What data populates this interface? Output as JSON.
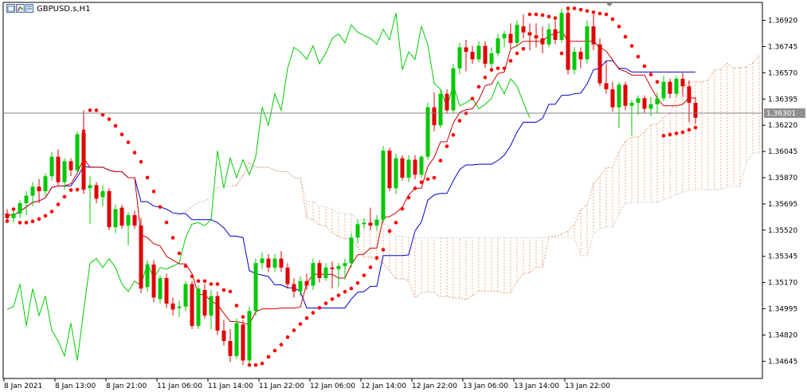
{
  "chart_window": {
    "symbol_title": "GBPUSD.s,H1",
    "icons": [
      "chart-window-icon"
    ],
    "current_price_label": "1.36301"
  },
  "chart_data": {
    "type": "candlestick",
    "symbol": "GBPUSD.s",
    "timeframe": "H1",
    "y_ticks": [
      "1.36920",
      "1.36745",
      "1.36570",
      "1.36395",
      "1.36220",
      "1.36045",
      "1.35870",
      "1.35695",
      "1.35520",
      "1.35345",
      "1.35170",
      "1.34995",
      "1.34820",
      "1.34645"
    ],
    "x_ticks": [
      "8 Jan 2021",
      "8 Jan 13:00",
      "8 Jan 21:00",
      "11 Jan 06:00",
      "11 Jan 14:00",
      "11 Jan 22:00",
      "12 Jan 06:00",
      "12 Jan 14:00",
      "12 Jan 22:00",
      "13 Jan 06:00",
      "13 Jan 14:00",
      "13 Jan 22:00"
    ],
    "ylim": [
      1.3453,
      1.3704
    ],
    "current_price": 1.36301,
    "candles": [
      [
        1.3563,
        1.3566,
        1.3558,
        1.356
      ],
      [
        1.356,
        1.3567,
        1.3557,
        1.3563
      ],
      [
        1.3563,
        1.3572,
        1.356,
        1.357
      ],
      [
        1.357,
        1.3578,
        1.3562,
        1.3575
      ],
      [
        1.3575,
        1.3584,
        1.3568,
        1.3581
      ],
      [
        1.3581,
        1.3586,
        1.357,
        1.3578
      ],
      [
        1.3578,
        1.359,
        1.3575,
        1.3588
      ],
      [
        1.3588,
        1.3604,
        1.3585,
        1.3601
      ],
      [
        1.3601,
        1.3606,
        1.3582,
        1.3584
      ],
      [
        1.3584,
        1.36,
        1.3579,
        1.3598
      ],
      [
        1.3598,
        1.36,
        1.3588,
        1.3592
      ],
      [
        1.3592,
        1.3618,
        1.359,
        1.3616
      ],
      [
        1.3617,
        1.3632,
        1.3576,
        1.3579
      ],
      [
        1.358,
        1.3588,
        1.3556,
        1.3582
      ],
      [
        1.3582,
        1.3584,
        1.357,
        1.3573
      ],
      [
        1.3574,
        1.3582,
        1.3568,
        1.3578
      ],
      [
        1.3578,
        1.358,
        1.3552,
        1.3554
      ],
      [
        1.3554,
        1.3569,
        1.355,
        1.3566
      ],
      [
        1.3567,
        1.3569,
        1.3553,
        1.3555
      ],
      [
        1.3555,
        1.3564,
        1.3542,
        1.3562
      ],
      [
        1.3562,
        1.3565,
        1.3553,
        1.3555
      ],
      [
        1.3555,
        1.356,
        1.351,
        1.3513
      ],
      [
        1.3514,
        1.3532,
        1.3511,
        1.3529
      ],
      [
        1.3529,
        1.3532,
        1.3504,
        1.3507
      ],
      [
        1.3506,
        1.3522,
        1.3503,
        1.352
      ],
      [
        1.352,
        1.3523,
        1.35,
        1.3503
      ],
      [
        1.3503,
        1.3507,
        1.3495,
        1.3499
      ],
      [
        1.35,
        1.3505,
        1.3494,
        1.3501
      ],
      [
        1.3501,
        1.3518,
        1.3498,
        1.3516
      ],
      [
        1.3516,
        1.3518,
        1.3486,
        1.3488
      ],
      [
        1.3488,
        1.3515,
        1.3486,
        1.3513
      ],
      [
        1.3512,
        1.3516,
        1.3493,
        1.3495
      ],
      [
        1.3495,
        1.3512,
        1.3486,
        1.3508
      ],
      [
        1.3508,
        1.3511,
        1.3482,
        1.3485
      ],
      [
        1.3485,
        1.3492,
        1.3475,
        1.3478
      ],
      [
        1.3478,
        1.3486,
        1.3464,
        1.3468
      ],
      [
        1.3468,
        1.3493,
        1.3466,
        1.349
      ],
      [
        1.3489,
        1.3492,
        1.3462,
        1.3465
      ],
      [
        1.3465,
        1.3501,
        1.3463,
        1.3498
      ],
      [
        1.3498,
        1.3533,
        1.3495,
        1.353
      ],
      [
        1.353,
        1.3537,
        1.3526,
        1.3533
      ],
      [
        1.3533,
        1.3536,
        1.3524,
        1.3527
      ],
      [
        1.3527,
        1.3536,
        1.3524,
        1.3533
      ],
      [
        1.3533,
        1.3538,
        1.3524,
        1.3527
      ],
      [
        1.3527,
        1.353,
        1.3513,
        1.3516
      ],
      [
        1.3516,
        1.352,
        1.3507,
        1.3511
      ],
      [
        1.3511,
        1.3521,
        1.3508,
        1.3518
      ],
      [
        1.3518,
        1.3523,
        1.3512,
        1.3515
      ],
      [
        1.3515,
        1.3533,
        1.3512,
        1.353
      ],
      [
        1.353,
        1.3532,
        1.3517,
        1.352
      ],
      [
        1.352,
        1.353,
        1.3518,
        1.3527
      ],
      [
        1.3527,
        1.3531,
        1.3513,
        1.3526
      ],
      [
        1.3526,
        1.353,
        1.3514,
        1.3528
      ],
      [
        1.3528,
        1.3533,
        1.3519,
        1.353
      ],
      [
        1.353,
        1.355,
        1.3527,
        1.3547
      ],
      [
        1.3547,
        1.3559,
        1.3543,
        1.3556
      ],
      [
        1.3556,
        1.356,
        1.3553,
        1.3557
      ],
      [
        1.3557,
        1.3567,
        1.3552,
        1.3555
      ],
      [
        1.3555,
        1.3562,
        1.3552,
        1.3559
      ],
      [
        1.3559,
        1.3608,
        1.3557,
        1.3605
      ],
      [
        1.3605,
        1.3607,
        1.3578,
        1.358
      ],
      [
        1.358,
        1.3603,
        1.3576,
        1.36
      ],
      [
        1.36,
        1.3602,
        1.3585,
        1.3587
      ],
      [
        1.3587,
        1.3602,
        1.3584,
        1.3599
      ],
      [
        1.3599,
        1.3602,
        1.3586,
        1.3589
      ],
      [
        1.3589,
        1.3602,
        1.3587,
        1.3601
      ],
      [
        1.3601,
        1.3637,
        1.3599,
        1.3634
      ],
      [
        1.3634,
        1.3644,
        1.3618,
        1.3622
      ],
      [
        1.3622,
        1.3646,
        1.362,
        1.3643
      ],
      [
        1.3643,
        1.3646,
        1.363,
        1.3632
      ],
      [
        1.3632,
        1.3663,
        1.363,
        1.366
      ],
      [
        1.366,
        1.3677,
        1.3656,
        1.3674
      ],
      [
        1.3674,
        1.3679,
        1.3658,
        1.3671
      ],
      [
        1.3671,
        1.3675,
        1.3663,
        1.3666
      ],
      [
        1.3666,
        1.3678,
        1.3664,
        1.3675
      ],
      [
        1.3675,
        1.3678,
        1.366,
        1.3663
      ],
      [
        1.3663,
        1.3674,
        1.366,
        1.367
      ],
      [
        1.367,
        1.3683,
        1.3668,
        1.368
      ],
      [
        1.368,
        1.3685,
        1.3674,
        1.3683
      ],
      [
        1.3683,
        1.369,
        1.3673,
        1.3677
      ],
      [
        1.3677,
        1.3692,
        1.3674,
        1.3689
      ],
      [
        1.3688,
        1.3696,
        1.368,
        1.3684
      ],
      [
        1.3684,
        1.369,
        1.3672,
        1.3682
      ],
      [
        1.3682,
        1.369,
        1.3674,
        1.368
      ],
      [
        1.368,
        1.3688,
        1.367,
        1.3676
      ],
      [
        1.3676,
        1.369,
        1.3674,
        1.3686
      ],
      [
        1.3686,
        1.3692,
        1.3676,
        1.3679
      ],
      [
        1.3679,
        1.37,
        1.3677,
        1.3697
      ],
      [
        1.3697,
        1.3699,
        1.3656,
        1.3659
      ],
      [
        1.3659,
        1.3674,
        1.3656,
        1.3671
      ],
      [
        1.3671,
        1.3674,
        1.366,
        1.3666
      ],
      [
        1.3666,
        1.3692,
        1.3663,
        1.3688
      ],
      [
        1.3688,
        1.3696,
        1.3672,
        1.3676
      ],
      [
        1.3676,
        1.368,
        1.3648,
        1.365
      ],
      [
        1.365,
        1.3665,
        1.3643,
        1.3646
      ],
      [
        1.3646,
        1.3651,
        1.3631,
        1.3634
      ],
      [
        1.3634,
        1.3651,
        1.362,
        1.3649
      ],
      [
        1.3649,
        1.3651,
        1.3632,
        1.3635
      ],
      [
        1.3635,
        1.3639,
        1.3615,
        1.3637
      ],
      [
        1.3637,
        1.3642,
        1.3629,
        1.364
      ],
      [
        1.364,
        1.3642,
        1.363,
        1.3633
      ],
      [
        1.3633,
        1.3641,
        1.3628,
        1.3636
      ],
      [
        1.3636,
        1.3644,
        1.363,
        1.364
      ],
      [
        1.364,
        1.3655,
        1.3638,
        1.3651
      ],
      [
        1.3651,
        1.3653,
        1.364,
        1.3643
      ],
      [
        1.3643,
        1.3655,
        1.3641,
        1.3653
      ],
      [
        1.3653,
        1.3657,
        1.3641,
        1.3648
      ],
      [
        1.3648,
        1.3652,
        1.3624,
        1.3637
      ],
      [
        1.3637,
        1.3641,
        1.3623,
        1.3627
      ]
    ],
    "indicators": {
      "parabolic_sar": {
        "color": "#ff0000"
      },
      "ichimoku": {
        "tenkan_color": "#cc0000",
        "kijun_color": "#0000cc",
        "chikou_color": "#00cc00",
        "cloud_color": "#e8a070"
      }
    },
    "grid": false
  }
}
